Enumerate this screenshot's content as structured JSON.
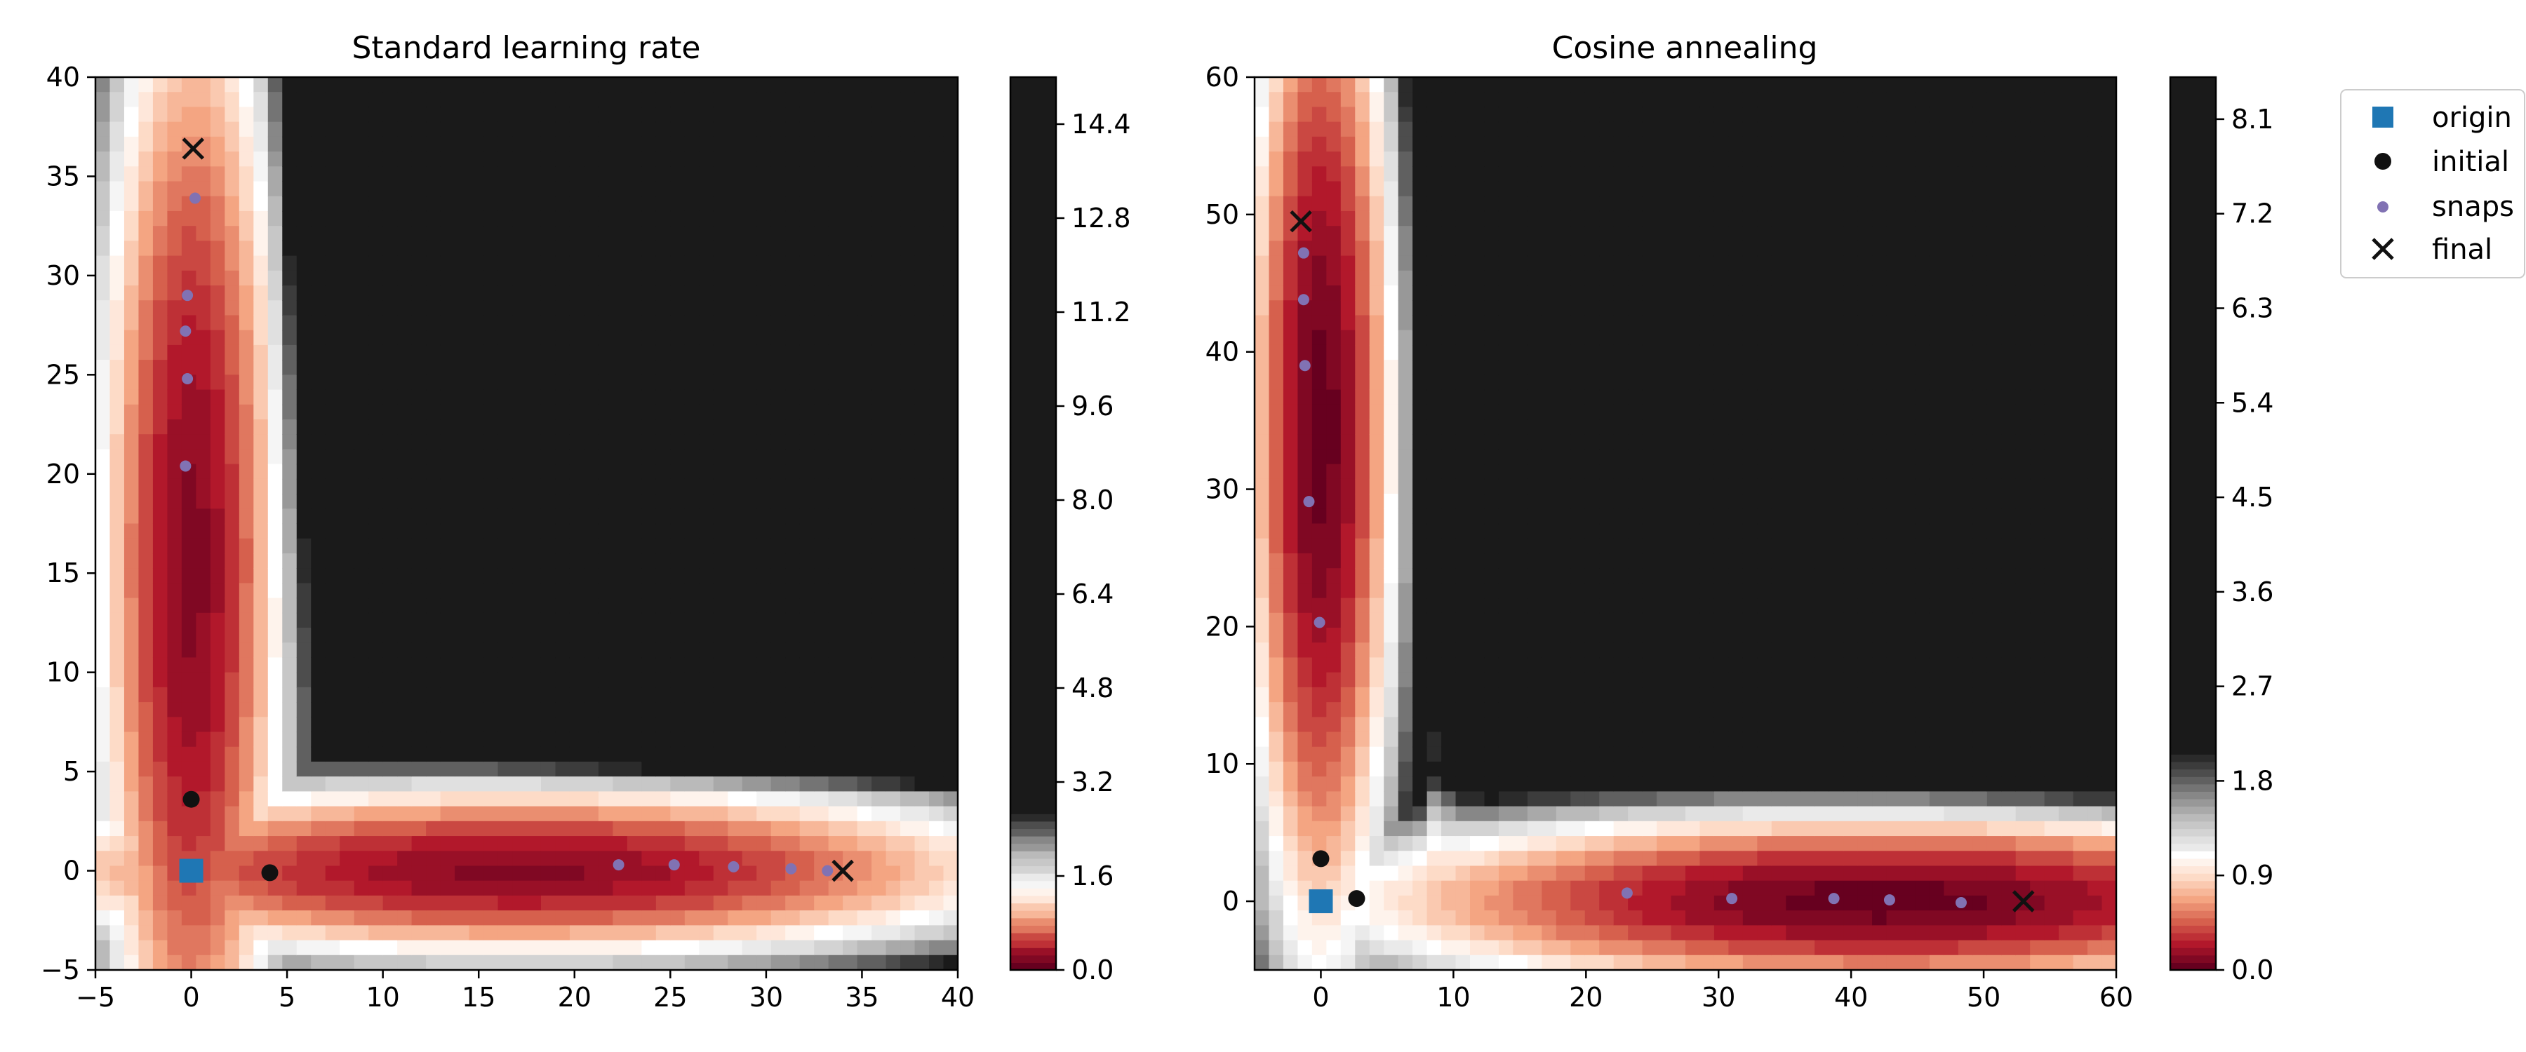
{
  "chart_data": [
    {
      "type": "contour",
      "title": "Standard learning rate",
      "xlim": [
        -5,
        40
      ],
      "ylim": [
        -5,
        40
      ],
      "xticks": [
        "−5",
        "0",
        "5",
        "10",
        "15",
        "20",
        "25",
        "30",
        "35",
        "40"
      ],
      "yticks": [
        "−5",
        "0",
        "5",
        "10",
        "15",
        "20",
        "25",
        "30",
        "35",
        "40"
      ],
      "colorbar": {
        "min": 0,
        "max": 15.2,
        "ticks": [
          "0.0",
          "1.6",
          "3.2",
          "4.8",
          "6.4",
          "8.0",
          "9.6",
          "11.2",
          "12.8",
          "14.4"
        ],
        "tick_values": [
          0,
          1.6,
          3.2,
          4.8,
          6.4,
          8.0,
          9.6,
          11.2,
          12.8,
          14.4
        ],
        "saturate_at": 2.6
      },
      "series": [
        {
          "name": "origin",
          "marker": "square",
          "color": "#1f77b4",
          "points": [
            [
              0,
              0
            ]
          ]
        },
        {
          "name": "initial",
          "marker": "circle",
          "color": "#111111",
          "points": [
            [
              0,
              3.6
            ],
            [
              4.1,
              -0.1
            ]
          ]
        },
        {
          "name": "snaps",
          "marker": "dot",
          "color": "#8172b3",
          "points": [
            [
              -0.3,
              20.4
            ],
            [
              -0.2,
              24.8
            ],
            [
              -0.3,
              27.2
            ],
            [
              -0.2,
              29.0
            ],
            [
              0.2,
              33.9
            ],
            [
              22.3,
              0.3
            ],
            [
              25.2,
              0.3
            ],
            [
              28.3,
              0.2
            ],
            [
              31.3,
              0.1
            ],
            [
              33.2,
              0.0
            ]
          ]
        },
        {
          "name": "final",
          "marker": "x",
          "color": "#111111",
          "points": [
            [
              0.1,
              36.4
            ],
            [
              34.0,
              0.0
            ]
          ]
        }
      ],
      "surface": {
        "kind": "standard",
        "a": 34.0,
        "b": 36.4
      }
    },
    {
      "type": "contour",
      "title": "Cosine annealing",
      "xlim": [
        -5,
        60
      ],
      "ylim": [
        -5,
        60
      ],
      "xticks": [
        "0",
        "10",
        "20",
        "30",
        "40",
        "50",
        "60"
      ],
      "yticks": [
        "0",
        "10",
        "20",
        "30",
        "40",
        "50",
        "60"
      ],
      "colorbar": {
        "min": 0,
        "max": 8.5,
        "ticks": [
          "0.0",
          "0.9",
          "1.8",
          "2.7",
          "3.6",
          "4.5",
          "5.4",
          "6.3",
          "7.2",
          "8.1"
        ],
        "tick_values": [
          0,
          0.9,
          1.8,
          2.7,
          3.6,
          4.5,
          5.4,
          6.3,
          7.2,
          8.1
        ],
        "saturate_at": 2.0
      },
      "series": [
        {
          "name": "origin",
          "marker": "square",
          "color": "#1f77b4",
          "points": [
            [
              0,
              0
            ]
          ]
        },
        {
          "name": "initial",
          "marker": "circle",
          "color": "#111111",
          "points": [
            [
              0,
              3.1
            ],
            [
              2.7,
              0.2
            ]
          ]
        },
        {
          "name": "snaps",
          "marker": "dot",
          "color": "#8172b3",
          "points": [
            [
              -0.1,
              20.3
            ],
            [
              -0.9,
              29.1
            ],
            [
              -1.2,
              39.0
            ],
            [
              -1.3,
              43.8
            ],
            [
              -1.3,
              47.2
            ],
            [
              23.1,
              0.6
            ],
            [
              31.0,
              0.2
            ],
            [
              38.7,
              0.2
            ],
            [
              42.9,
              0.1
            ],
            [
              48.3,
              -0.1
            ]
          ]
        },
        {
          "name": "final",
          "marker": "x",
          "color": "#111111",
          "points": [
            [
              -1.5,
              49.5
            ],
            [
              53.0,
              0.0
            ]
          ]
        }
      ],
      "surface": {
        "kind": "cosine",
        "a": 53.0,
        "b": 49.5
      }
    }
  ],
  "legend": {
    "placement": "outside-right",
    "items": [
      {
        "label": "origin",
        "marker": "square",
        "color": "#1f77b4"
      },
      {
        "label": "initial",
        "marker": "circle",
        "color": "#111111"
      },
      {
        "label": "snaps",
        "marker": "dot",
        "color": "#8172b3"
      },
      {
        "label": "final",
        "marker": "x",
        "color": "#111111"
      }
    ]
  },
  "colormap": {
    "name": "RdGy_r",
    "stops": [
      "#67001f",
      "#b2182b",
      "#d6604d",
      "#f4a582",
      "#fddbc7",
      "#ffffff",
      "#e0e0e0",
      "#bababa",
      "#878787",
      "#4d4d4d",
      "#1a1a1a"
    ]
  }
}
